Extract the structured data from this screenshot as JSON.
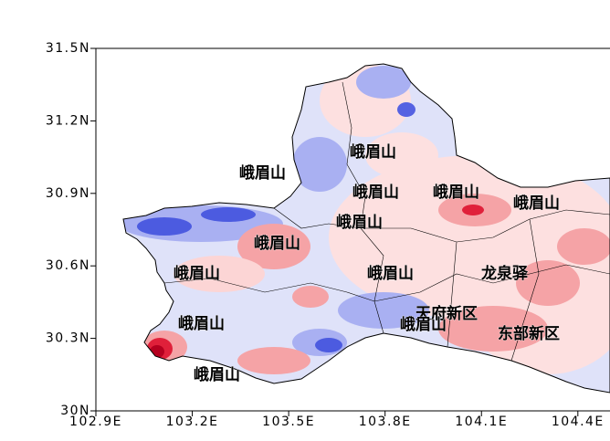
{
  "map": {
    "xlim": [
      102.9,
      104.5
    ],
    "ylim": [
      30,
      31.5
    ],
    "xticks": [
      {
        "value": 102.9,
        "label": "102.9E"
      },
      {
        "value": 103.2,
        "label": "103.2E"
      },
      {
        "value": 103.5,
        "label": "103.5E"
      },
      {
        "value": 103.8,
        "label": "103.8E"
      },
      {
        "value": 104.1,
        "label": "104.1E"
      },
      {
        "value": 104.4,
        "label": "104.4E"
      }
    ],
    "yticks": [
      {
        "value": 30,
        "label": "30N"
      },
      {
        "value": 30.3,
        "label": "30.3N"
      },
      {
        "value": 30.6,
        "label": "30.6N"
      },
      {
        "value": 30.9,
        "label": "30.9N"
      },
      {
        "value": 31.2,
        "label": "31.2N"
      },
      {
        "value": 31.5,
        "label": "31.5N"
      }
    ],
    "places": [
      "峨眉山",
      "峨眉山",
      "峨眉山",
      "峨眉山",
      "峨眉山",
      "峨眉山",
      "峨眉山",
      "峨眉山",
      "峨眉山",
      "龙泉驿",
      "天府新区",
      "峨眉山",
      "东部新区",
      "峨眉山",
      "峨眉山"
    ]
  }
}
